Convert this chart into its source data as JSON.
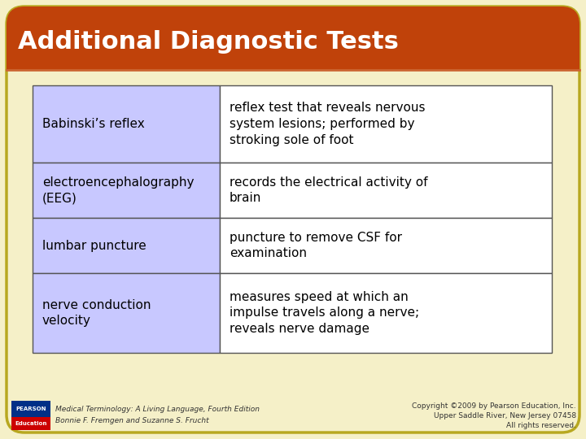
{
  "title": "Additional Diagnostic Tests",
  "title_bg_color": "#C0420A",
  "title_text_color": "#FFFFFF",
  "bg_color": "#F5F0C8",
  "table_left_bg": "#C8C8FF",
  "table_right_bg": "#FFFFFF",
  "table_border_color": "#555555",
  "card_border_color": "#B8A820",
  "rows": [
    {
      "term": "Babinski’s reflex",
      "definition": "reflex test that reveals nervous\nsystem lesions; performed by\nstroking sole of foot"
    },
    {
      "term": "electroencephalography\n(EEG)",
      "definition": "records the electrical activity of\nbrain"
    },
    {
      "term": "lumbar puncture",
      "definition": "puncture to remove CSF for\nexamination"
    },
    {
      "term": "nerve conduction\nvelocity",
      "definition": "measures speed at which an\nimpulse travels along a nerve;\nreveals nerve damage"
    }
  ],
  "footer_left_line1": "Medical Terminology: A Living Language, Fourth Edition",
  "footer_left_line2": "Bonnie F. Fremgen and Suzanne S. Frucht",
  "footer_right_line1": "Copyright ©2009 by Pearson Education, Inc.",
  "footer_right_line2": "Upper Saddle River, New Jersey 07458",
  "footer_right_line3": "All rights reserved.",
  "pearson_box_color": "#003087",
  "education_box_color": "#CC0000"
}
